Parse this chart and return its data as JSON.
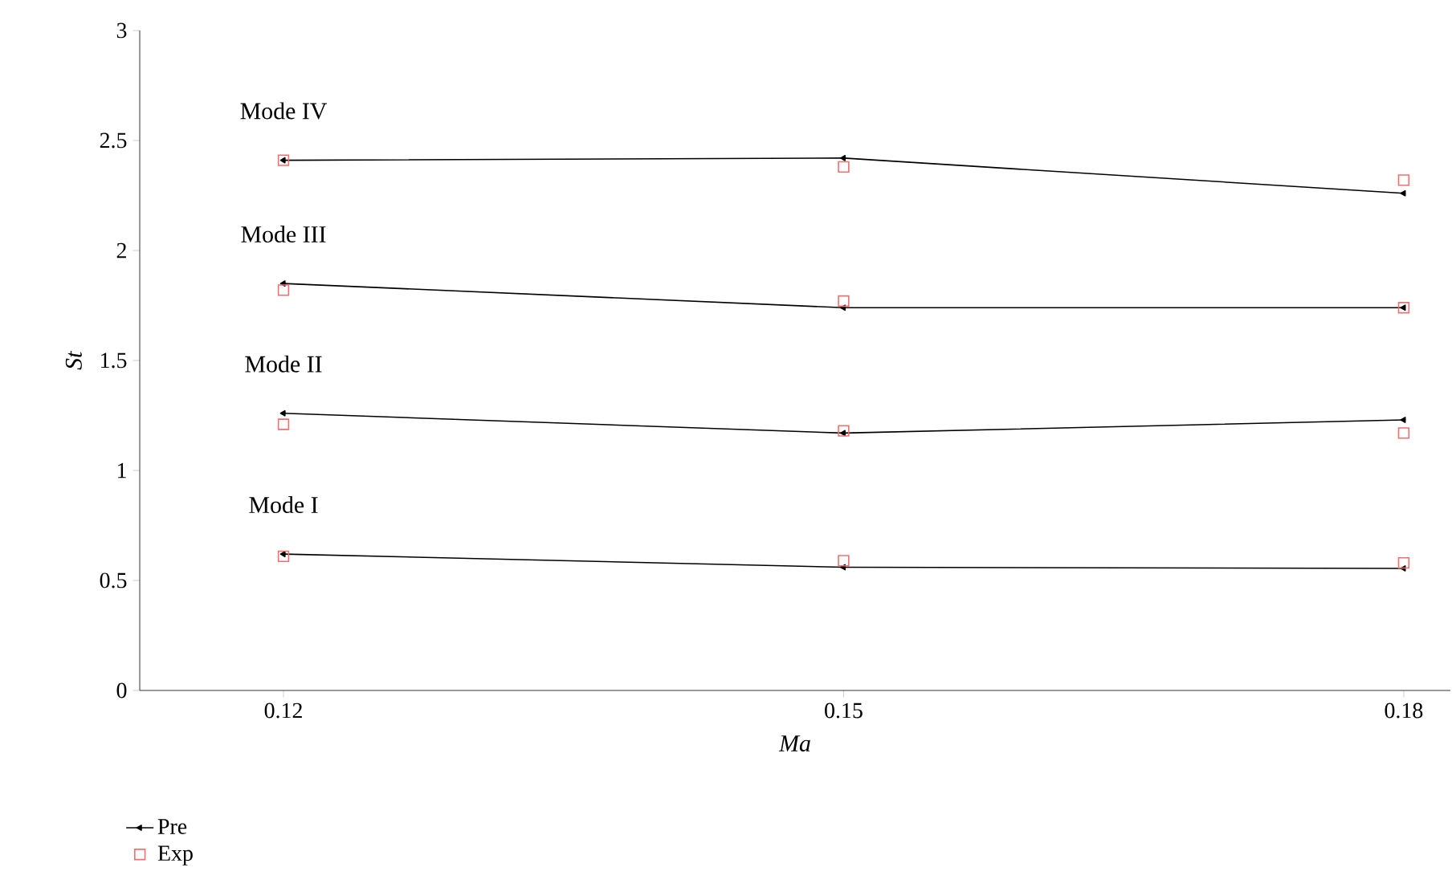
{
  "chart_data": {
    "type": "line",
    "xlabel": "*Ma*",
    "ylabel": "*St*",
    "x": [
      0.12,
      0.15,
      0.18
    ],
    "series": [
      {
        "name": "Pre",
        "color": "#000000",
        "marker": "triangle",
        "values": [
          0.62,
          0.56,
          0.555
        ]
      },
      {
        "color": "#000000",
        "marker": "triangle",
        "values": [
          1.26,
          1.17,
          1.23
        ]
      },
      {
        "color": "#000000",
        "marker": "triangle",
        "values": [
          1.85,
          1.74,
          1.74
        ]
      },
      {
        "color": "#000000",
        "marker": "triangle",
        "values": [
          2.41,
          2.42,
          2.26
        ]
      },
      {
        "name": "Exp",
        "color": "#f07070",
        "type": "scatter",
        "marker": "square",
        "values": [
          0.61,
          0.59,
          0.58
        ]
      },
      {
        "color": "#f07070",
        "type": "scatter",
        "marker": "square",
        "values": [
          1.21,
          1.18,
          1.17
        ]
      },
      {
        "color": "#f07070",
        "type": "scatter",
        "marker": "square",
        "values": [
          1.82,
          1.77,
          1.74
        ]
      },
      {
        "color": "#f07070",
        "type": "scatter",
        "marker": "square",
        "values": [
          2.41,
          2.38,
          2.32
        ]
      }
    ],
    "annotations": [
      "Mode I",
      "Mode II",
      "Mode III",
      "Mode IV"
    ],
    "xlim": [
      0.1123,
      0.1825
    ],
    "xticks": [
      0.12,
      0.15,
      0.18
    ],
    "ylim": [
      0,
      3
    ],
    "yticks": [
      0,
      0.5,
      1,
      1.5,
      2,
      2.5,
      3
    ],
    "grid": false,
    "legend": "bottom left"
  }
}
